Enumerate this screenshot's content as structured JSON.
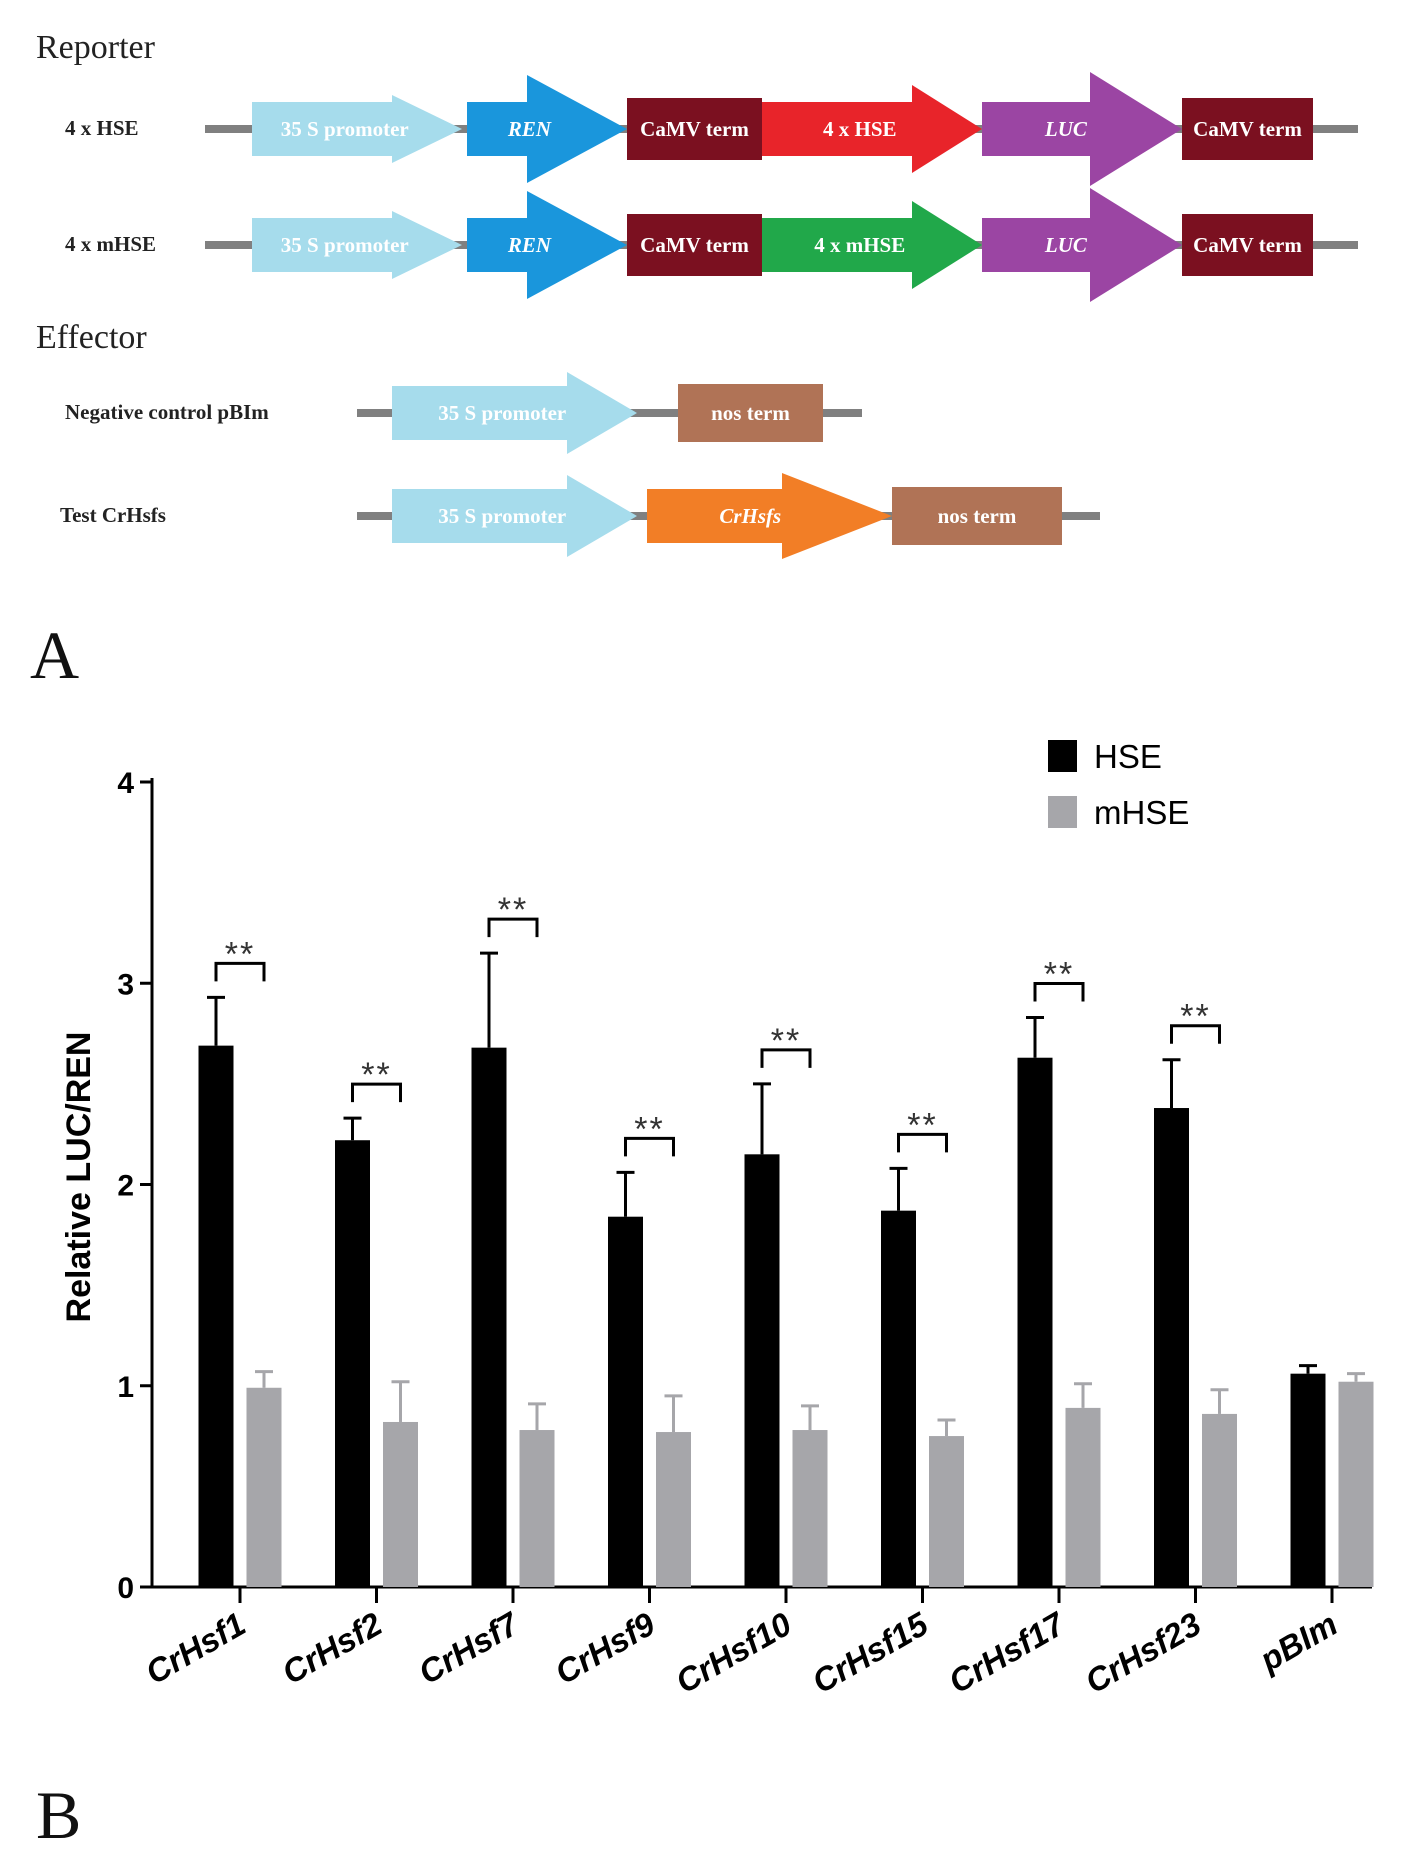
{
  "panel_a": {
    "panel_letter": "A",
    "reporter_heading": "Reporter",
    "effector_heading": "Effector",
    "colors": {
      "backbone": "#808080",
      "promoter": "#a6dcec",
      "ren": "#1a96dc",
      "camv": "#7b1020",
      "hse": "#e8242a",
      "mhse": "#21a84a",
      "luc": "#9b45a3",
      "nos": "#b07356",
      "crhsfs": "#f27e26"
    },
    "constructs": [
      {
        "name": "4 x HSE",
        "parts": [
          {
            "label": "35 S promoter",
            "type": "promoter",
            "italic": false
          },
          {
            "label": "REN",
            "type": "ren",
            "italic": true
          },
          {
            "label": "CaMV term",
            "type": "camv",
            "italic": false
          },
          {
            "label": "4 x HSE",
            "type": "hse",
            "italic": false
          },
          {
            "label": "LUC",
            "type": "luc",
            "italic": true
          },
          {
            "label": "CaMV term",
            "type": "camv",
            "italic": false
          }
        ]
      },
      {
        "name": "4 x mHSE",
        "parts": [
          {
            "label": "35 S promoter",
            "type": "promoter",
            "italic": false
          },
          {
            "label": "REN",
            "type": "ren",
            "italic": true
          },
          {
            "label": "CaMV term",
            "type": "camv",
            "italic": false
          },
          {
            "label": "4 x mHSE",
            "type": "mhse",
            "italic": false
          },
          {
            "label": "LUC",
            "type": "luc",
            "italic": true
          },
          {
            "label": "CaMV term",
            "type": "camv",
            "italic": false
          }
        ]
      },
      {
        "name": "Negative control pBIm",
        "parts": [
          {
            "label": "35 S promoter",
            "type": "promoter",
            "italic": false
          },
          {
            "label": "nos term",
            "type": "nos",
            "italic": false
          }
        ]
      },
      {
        "name": "Test CrHsfs",
        "parts": [
          {
            "label": "35 S promoter",
            "type": "promoter",
            "italic": false
          },
          {
            "label": "CrHsfs",
            "type": "crhsfs",
            "italic": true
          },
          {
            "label": "nos term",
            "type": "nos",
            "italic": false
          }
        ]
      }
    ]
  },
  "chart_data": {
    "type": "bar",
    "panel_letter": "B",
    "title": "",
    "xlabel": "",
    "ylabel": "Relative LUC/REN",
    "ylim": [
      0,
      4
    ],
    "yticks": [
      0,
      1,
      2,
      3,
      4
    ],
    "grid": false,
    "legend_position": "top-right",
    "categories": [
      "CrHsf1",
      "CrHsf2",
      "CrHsf7",
      "CrHsf9",
      "CrHsf10",
      "CrHsf15",
      "CrHsf17",
      "CrHsf23",
      "pBIm"
    ],
    "series": [
      {
        "name": "HSE",
        "color": "#000000",
        "values": [
          2.69,
          2.22,
          2.68,
          1.84,
          2.15,
          1.87,
          2.63,
          2.38,
          1.06
        ],
        "errors": [
          0.24,
          0.11,
          0.47,
          0.22,
          0.35,
          0.21,
          0.2,
          0.24,
          0.04
        ]
      },
      {
        "name": "mHSE",
        "color": "#a6a6aa",
        "values": [
          0.99,
          0.82,
          0.78,
          0.77,
          0.78,
          0.75,
          0.89,
          0.86,
          1.02
        ],
        "errors": [
          0.08,
          0.2,
          0.13,
          0.18,
          0.12,
          0.08,
          0.12,
          0.12,
          0.04
        ]
      }
    ],
    "significance": [
      {
        "category": "CrHsf1",
        "label": "**"
      },
      {
        "category": "CrHsf2",
        "label": "**"
      },
      {
        "category": "CrHsf7",
        "label": "**"
      },
      {
        "category": "CrHsf9",
        "label": "**"
      },
      {
        "category": "CrHsf10",
        "label": "**"
      },
      {
        "category": "CrHsf15",
        "label": "**"
      },
      {
        "category": "CrHsf17",
        "label": "**"
      },
      {
        "category": "CrHsf23",
        "label": "**"
      }
    ]
  }
}
